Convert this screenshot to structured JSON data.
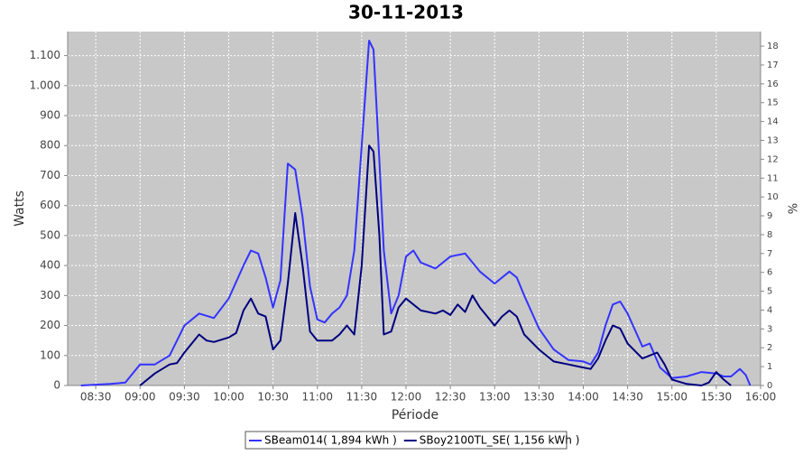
{
  "chart_data": {
    "type": "line",
    "title": "30-11-2013",
    "xlabel": "Période",
    "ylabel": "Watts",
    "y2label": "%",
    "xlim": [
      "08:11",
      "16:00"
    ],
    "xticks": [
      "08:30",
      "09:00",
      "09:30",
      "10:00",
      "10:30",
      "11:00",
      "11:30",
      "12:00",
      "12:30",
      "13:00",
      "13:30",
      "14:00",
      "14:30",
      "15:00",
      "15:30",
      "16:00"
    ],
    "ylim": [
      0,
      1180
    ],
    "yticks": [
      0,
      100,
      200,
      300,
      400,
      500,
      600,
      700,
      800,
      900,
      {
        "value": 1000,
        "label": "1.000"
      },
      {
        "value": 1100,
        "label": "1.100"
      }
    ],
    "y2lim": [
      0,
      18.77
    ],
    "y2ticks": [
      0,
      1,
      2,
      3,
      4,
      5,
      6,
      7,
      8,
      9,
      10,
      11,
      12,
      13,
      14,
      15,
      16,
      17,
      18
    ],
    "grid": true,
    "legend": "bottom",
    "series": [
      {
        "name": "SBeam014( 1,894 kWh )",
        "color": "#3333ff",
        "x": [
          "08:20",
          "08:40",
          "08:50",
          "09:00",
          "09:10",
          "09:20",
          "09:30",
          "09:40",
          "09:50",
          "10:00",
          "10:10",
          "10:15",
          "10:20",
          "10:25",
          "10:30",
          "10:35",
          "10:40",
          "10:45",
          "10:50",
          "10:55",
          "11:00",
          "11:05",
          "11:10",
          "11:15",
          "11:20",
          "11:25",
          "11:30",
          "11:35",
          "11:38",
          "11:42",
          "11:45",
          "11:50",
          "11:55",
          "12:00",
          "12:05",
          "12:10",
          "12:20",
          "12:30",
          "12:40",
          "12:50",
          "13:00",
          "13:10",
          "13:15",
          "13:20",
          "13:30",
          "13:40",
          "13:50",
          "14:00",
          "14:05",
          "14:10",
          "14:15",
          "14:20",
          "14:25",
          "14:30",
          "14:40",
          "14:45",
          "14:52",
          "15:00",
          "15:10",
          "15:20",
          "15:30",
          "15:35",
          "15:40",
          "15:46",
          "15:50",
          "15:53"
        ],
        "values": [
          0,
          5,
          10,
          70,
          70,
          100,
          200,
          240,
          225,
          290,
          400,
          450,
          440,
          360,
          260,
          350,
          740,
          720,
          560,
          330,
          220,
          210,
          240,
          260,
          300,
          450,
          800,
          1150,
          1120,
          750,
          450,
          240,
          300,
          430,
          450,
          410,
          390,
          430,
          440,
          380,
          340,
          380,
          360,
          300,
          190,
          120,
          85,
          80,
          70,
          110,
          200,
          270,
          280,
          240,
          130,
          140,
          60,
          25,
          30,
          45,
          40,
          30,
          30,
          55,
          35,
          0
        ]
      },
      {
        "name": "SBoy2100TL_SE( 1,156 kWh )",
        "color": "#000080",
        "x": [
          "09:00",
          "09:10",
          "09:20",
          "09:25",
          "09:30",
          "09:40",
          "09:45",
          "09:50",
          "10:00",
          "10:05",
          "10:10",
          "10:15",
          "10:20",
          "10:25",
          "10:30",
          "10:35",
          "10:40",
          "10:45",
          "10:50",
          "10:55",
          "11:00",
          "11:10",
          "11:15",
          "11:20",
          "11:25",
          "11:30",
          "11:35",
          "11:38",
          "11:42",
          "11:45",
          "11:50",
          "11:55",
          "12:00",
          "12:10",
          "12:20",
          "12:25",
          "12:30",
          "12:35",
          "12:40",
          "12:45",
          "12:50",
          "12:55",
          "13:00",
          "13:05",
          "13:10",
          "13:15",
          "13:20",
          "13:30",
          "13:40",
          "13:50",
          "14:00",
          "14:05",
          "14:10",
          "14:15",
          "14:20",
          "14:25",
          "14:30",
          "14:40",
          "14:45",
          "14:50",
          "14:55",
          "15:00",
          "15:10",
          "15:20",
          "15:25",
          "15:30",
          "15:35",
          "15:40"
        ],
        "values": [
          0,
          40,
          70,
          75,
          110,
          170,
          150,
          145,
          160,
          175,
          250,
          290,
          240,
          230,
          120,
          150,
          340,
          575,
          400,
          180,
          150,
          150,
          170,
          200,
          170,
          400,
          800,
          780,
          500,
          170,
          180,
          260,
          290,
          250,
          240,
          250,
          235,
          270,
          245,
          300,
          260,
          230,
          200,
          230,
          250,
          230,
          170,
          120,
          80,
          70,
          60,
          55,
          90,
          150,
          200,
          190,
          140,
          90,
          100,
          110,
          70,
          20,
          5,
          0,
          10,
          45,
          20,
          0
        ]
      }
    ]
  }
}
